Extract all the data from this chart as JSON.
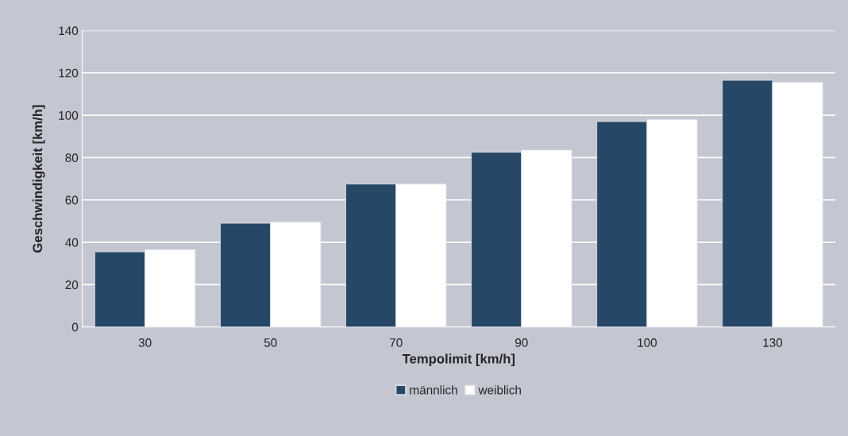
{
  "chart_data": {
    "type": "bar",
    "xlabel": "Tempolimit [km/h]",
    "ylabel": "Geschwindigkeit [km/h]",
    "categories": [
      "30",
      "50",
      "70",
      "90",
      "100",
      "130"
    ],
    "series": [
      {
        "name": "männlich",
        "color": "#264866",
        "values": [
          35.5,
          49,
          67.5,
          82.5,
          97,
          116.5
        ]
      },
      {
        "name": "weiblich",
        "color": "#ffffff",
        "values": [
          36.5,
          49.5,
          67.5,
          83.5,
          98,
          115.5
        ]
      }
    ],
    "ylim": [
      0,
      140
    ],
    "yticks": [
      0,
      20,
      40,
      60,
      80,
      100,
      120,
      140
    ],
    "grid": "y",
    "legend": "bottom"
  }
}
